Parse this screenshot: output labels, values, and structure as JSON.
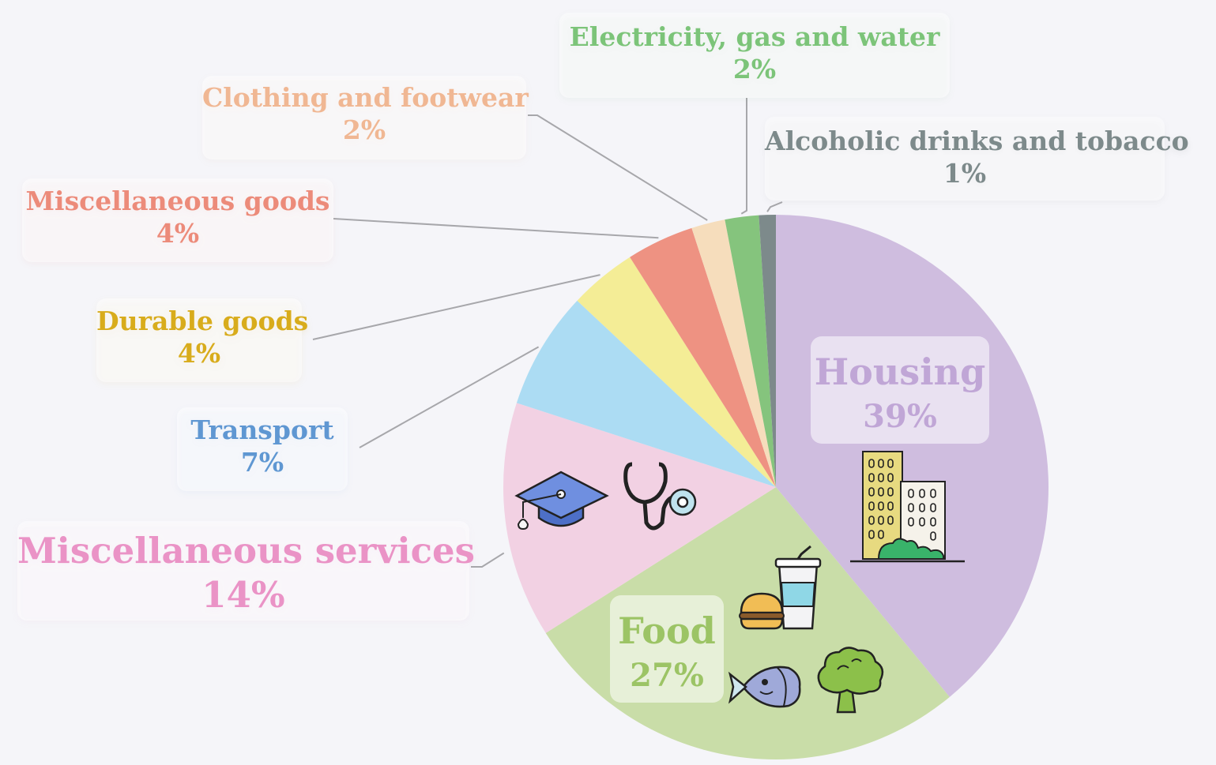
{
  "chart_data": {
    "type": "pie",
    "title": "",
    "start_angle_deg": 0,
    "direction": "clockwise",
    "slices": [
      {
        "label": "Housing",
        "value": 39,
        "pct_text": "39%",
        "color": "#cfbddf",
        "text_color": "#c0a6d6"
      },
      {
        "label": "Food",
        "value": 27,
        "pct_text": "27%",
        "color": "#c9dda8",
        "text_color": "#9cc465"
      },
      {
        "label": "Miscellaneous services",
        "value": 14,
        "pct_text": "14%",
        "color": "#f2d1e3",
        "text_color": "#ea93c6"
      },
      {
        "label": "Transport",
        "value": 7,
        "pct_text": "7%",
        "color": "#acdcf3",
        "text_color": "#5f97d2"
      },
      {
        "label": "Durable goods",
        "value": 4,
        "pct_text": "4%",
        "color": "#f4ed96",
        "text_color": "#d8ac1c"
      },
      {
        "label": "Miscellaneous goods",
        "value": 4,
        "pct_text": "4%",
        "color": "#ee9282",
        "text_color": "#ec8b7a"
      },
      {
        "label": "Clothing and footwear",
        "value": 2,
        "pct_text": "2%",
        "color": "#f6ddbc",
        "text_color": "#f0b793"
      },
      {
        "label": "Electricity, gas and water",
        "value": 2,
        "pct_text": "2%",
        "color": "#85c47d",
        "text_color": "#7cc479"
      },
      {
        "label": "Alcoholic drinks and tobacco",
        "value": 1,
        "pct_text": "1%",
        "color": "#7d8a8b",
        "text_color": "#7d8a8b"
      }
    ],
    "legend": "none",
    "icons": [
      "buildings-icon",
      "burger-drink-icon",
      "fish-icon",
      "broccoli-icon",
      "graduation-cap-icon",
      "stethoscope-icon"
    ]
  }
}
